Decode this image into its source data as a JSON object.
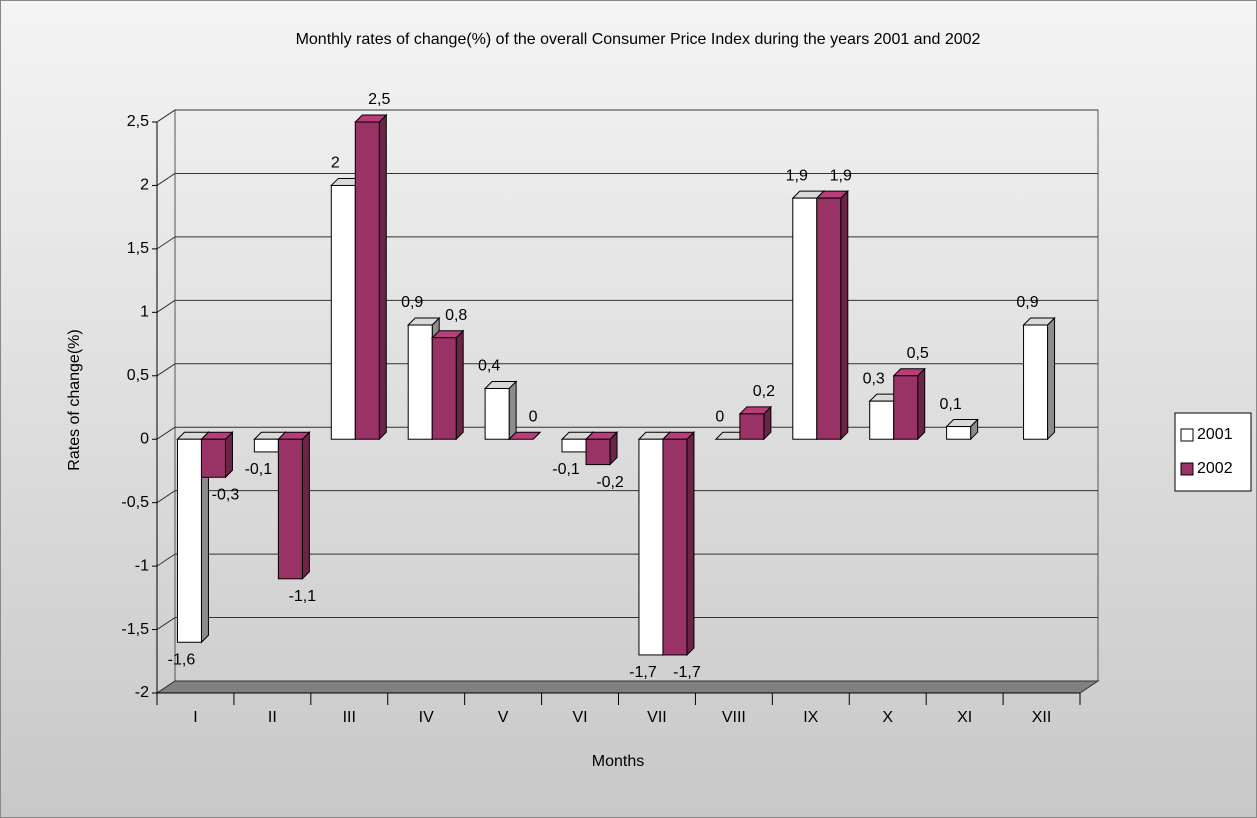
{
  "chart_data": {
    "type": "bar3d",
    "title": "Monthly rates of change(%) of the overall Consumer Price Index during the years 2001 and 2002",
    "x_label": "Months",
    "y_label": "Rates of change(%)",
    "categories": [
      "I",
      "II",
      "III",
      "IV",
      "V",
      "VI",
      "VII",
      "VIII",
      "IX",
      "X",
      "XI",
      "XII"
    ],
    "series": [
      {
        "name": "2001",
        "color": "#ffffff",
        "values": [
          -1.6,
          -0.1,
          2,
          0.9,
          0.4,
          -0.1,
          -1.7,
          0,
          1.9,
          0.3,
          0.1,
          0.9
        ],
        "value_labels": [
          "-1,6",
          "-0,1",
          "2",
          "0,9",
          "0,4",
          "-0,1",
          "-1,7",
          "0",
          "1,9",
          "0,3",
          "0,1",
          "0,9"
        ]
      },
      {
        "name": "2002",
        "color": "#993366",
        "values": [
          -0.3,
          -1.1,
          2.5,
          0.8,
          0,
          -0.2,
          -1.7,
          0.2,
          1.9,
          0.5,
          null,
          null
        ],
        "value_labels": [
          "-0,3",
          "-1,1",
          "2,5",
          "0,8",
          "0",
          "-0,2",
          "-1,7",
          "0,2",
          "1,9",
          "0,5",
          null,
          null
        ]
      }
    ],
    "ylim": [
      -2,
      2.5
    ],
    "yticks": [
      -2,
      {
        "value": -1.5,
        "label": "-1,5"
      },
      -1,
      {
        "value": -0.5,
        "label": "-0,5"
      },
      0,
      {
        "value": 0.5,
        "label": "0,5"
      },
      1,
      {
        "value": 1.5,
        "label": "1,5"
      },
      2,
      {
        "value": 2.5,
        "label": "2,5"
      }
    ],
    "grid": true,
    "legend": "right"
  }
}
